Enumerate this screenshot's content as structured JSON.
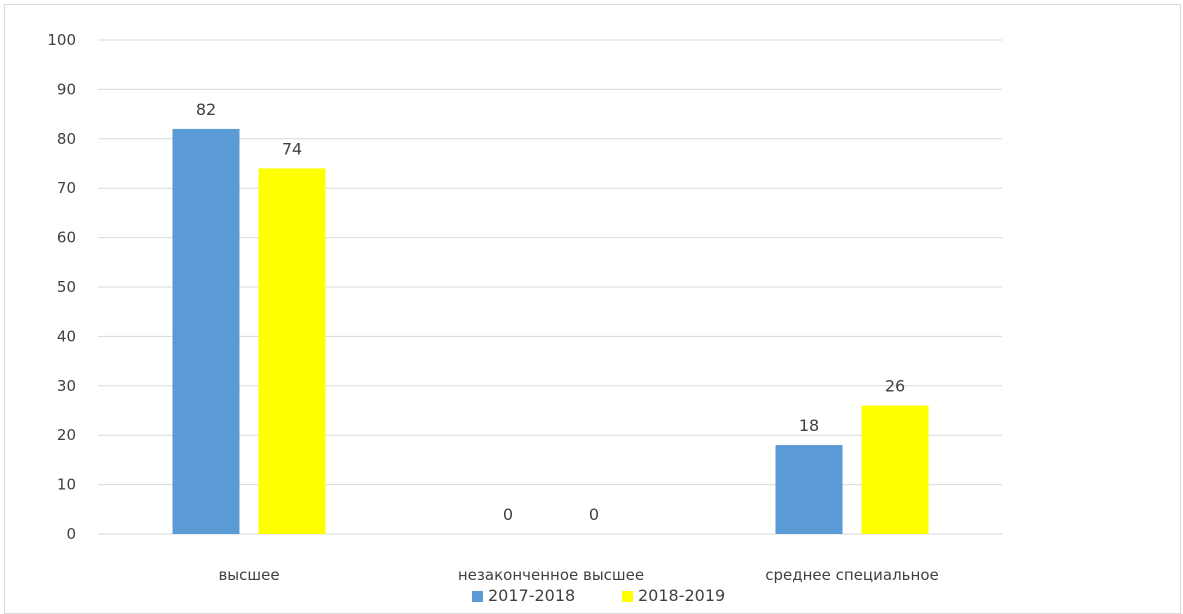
{
  "chart_data": {
    "type": "bar",
    "categories": [
      "высшее",
      "незаконченное высшее",
      "среднее специальное"
    ],
    "series": [
      {
        "name": "2017-2018",
        "values": [
          82,
          0,
          18
        ],
        "color": "#5b9bd5"
      },
      {
        "name": "2018-2019",
        "values": [
          74,
          0,
          26
        ],
        "color": "#ffff00"
      }
    ],
    "title": "",
    "xlabel": "",
    "ylabel": "",
    "ylim": [
      0,
      100
    ],
    "yticks": [
      0,
      10,
      20,
      30,
      40,
      50,
      60,
      70,
      80,
      90,
      100
    ],
    "grid": true,
    "legend": "bottom",
    "data_labels": true
  }
}
